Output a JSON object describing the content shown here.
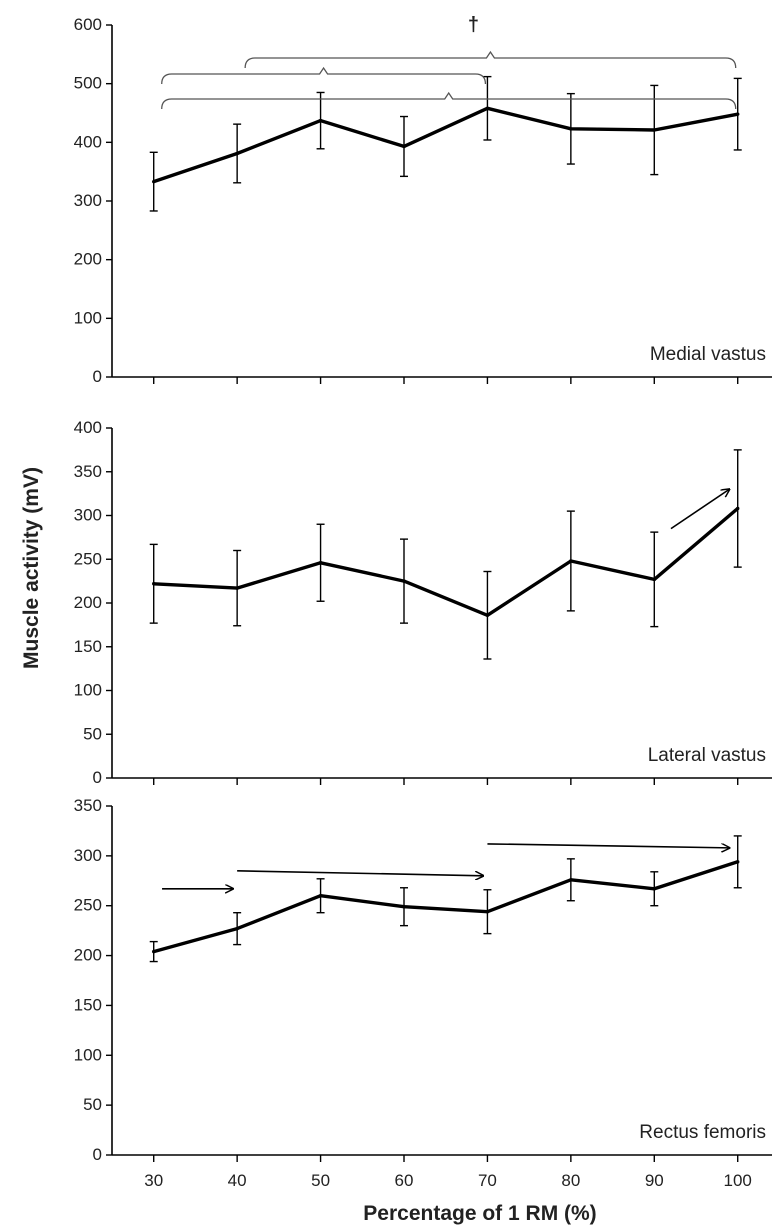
{
  "figure": {
    "ylabel": "Muscle activity (mV)",
    "xlabel": "Percentage of 1 RM (%)",
    "line_color": "#000000",
    "text_color": "#222222"
  },
  "chart_data": [
    {
      "type": "line",
      "panel_label": "Medial vastus",
      "x": [
        30,
        40,
        50,
        60,
        70,
        80,
        90,
        100
      ],
      "y": [
        333,
        381,
        437,
        393,
        458,
        423,
        421,
        448
      ],
      "error": [
        50,
        50,
        48,
        51,
        54,
        60,
        76,
        61
      ],
      "ylim": [
        0,
        600
      ],
      "yticks": [
        0,
        100,
        200,
        300,
        400,
        500,
        600
      ],
      "xticks": [
        30,
        40,
        50,
        60,
        70,
        80,
        90,
        100
      ],
      "show_x_tick_labels": false,
      "annotations": {
        "brackets": [
          {
            "from": 40,
            "to": 100
          },
          {
            "from": 30,
            "to": 70
          },
          {
            "from": 30,
            "to": 100
          }
        ],
        "dagger": {
          "text": "†",
          "x": 70
        },
        "arrows": []
      }
    },
    {
      "type": "line",
      "panel_label": "Lateral vastus",
      "x": [
        30,
        40,
        50,
        60,
        70,
        80,
        90,
        100
      ],
      "y": [
        222,
        217,
        246,
        225,
        186,
        248,
        227,
        308
      ],
      "error": [
        45,
        43,
        44,
        48,
        50,
        57,
        54,
        67
      ],
      "ylim": [
        0,
        400
      ],
      "yticks": [
        0,
        50,
        100,
        150,
        200,
        250,
        300,
        350,
        400
      ],
      "xticks": [
        30,
        40,
        50,
        60,
        70,
        80,
        90,
        100
      ],
      "show_x_tick_labels": false,
      "annotations": {
        "brackets": [],
        "arrows": [
          {
            "from": [
              92,
              285
            ],
            "to": [
              99,
              330
            ]
          }
        ]
      }
    },
    {
      "type": "line",
      "panel_label": "Rectus femoris",
      "x": [
        30,
        40,
        50,
        60,
        70,
        80,
        90,
        100
      ],
      "y": [
        204,
        227,
        260,
        249,
        244,
        276,
        267,
        294
      ],
      "error": [
        10,
        16,
        17,
        19,
        22,
        21,
        17,
        26
      ],
      "ylim": [
        0,
        350
      ],
      "yticks": [
        0,
        50,
        100,
        150,
        200,
        250,
        300,
        350
      ],
      "xticks": [
        30,
        40,
        50,
        60,
        70,
        80,
        90,
        100
      ],
      "show_x_tick_labels": true,
      "annotations": {
        "brackets": [],
        "arrows": [
          {
            "from": [
              31,
              267
            ],
            "to": [
              39.5,
              267
            ]
          },
          {
            "from": [
              40,
              285
            ],
            "to": [
              69.5,
              280
            ]
          },
          {
            "from": [
              70,
              312
            ],
            "to": [
              99,
              308
            ]
          }
        ]
      }
    }
  ]
}
